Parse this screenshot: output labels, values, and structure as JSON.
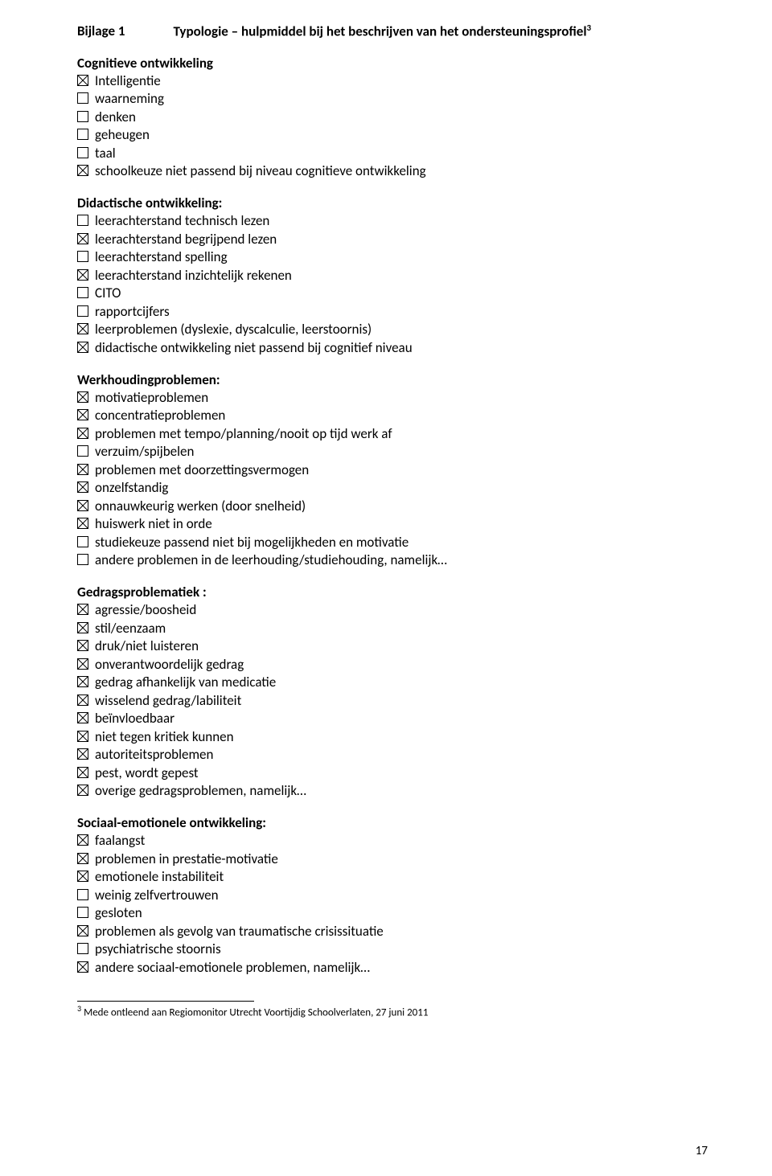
{
  "title": {
    "left": "Bijlage 1",
    "right": "Typologie – hulpmiddel bij het beschrijven van het ondersteuningsprofiel",
    "sup": "3"
  },
  "sections": [
    {
      "heading": "Cognitieve ontwikkeling",
      "items": [
        {
          "checked": true,
          "label": "Intelligentie"
        },
        {
          "checked": false,
          "label": "waarneming"
        },
        {
          "checked": false,
          "label": "denken"
        },
        {
          "checked": false,
          "label": "geheugen"
        },
        {
          "checked": false,
          "label": "taal"
        },
        {
          "checked": true,
          "label": "schoolkeuze niet passend bij niveau cognitieve ontwikkeling"
        }
      ]
    },
    {
      "heading": "Didactische ontwikkeling:",
      "items": [
        {
          "checked": false,
          "label": "leerachterstand technisch lezen"
        },
        {
          "checked": true,
          "label": "leerachterstand begrijpend lezen"
        },
        {
          "checked": false,
          "label": "leerachterstand spelling"
        },
        {
          "checked": true,
          "label": "leerachterstand inzichtelijk rekenen"
        },
        {
          "checked": false,
          "label": "CITO"
        },
        {
          "checked": false,
          "label": "rapportcijfers"
        },
        {
          "checked": true,
          "label": "leerproblemen (dyslexie, dyscalculie, leerstoornis)"
        },
        {
          "checked": true,
          "label": "didactische ontwikkeling niet passend bij cognitief niveau"
        }
      ]
    },
    {
      "heading": "Werkhoudingproblemen:",
      "items": [
        {
          "checked": true,
          "label": "motivatieproblemen"
        },
        {
          "checked": true,
          "label": "concentratieproblemen"
        },
        {
          "checked": true,
          "label": "problemen met tempo/planning/nooit op tijd werk af"
        },
        {
          "checked": false,
          "label": "verzuim/spijbelen"
        },
        {
          "checked": true,
          "label": "problemen met doorzettingsvermogen"
        },
        {
          "checked": true,
          "label": "onzelfstandig"
        },
        {
          "checked": true,
          "label": "onnauwkeurig werken (door snelheid)"
        },
        {
          "checked": true,
          "label": "huiswerk niet in orde"
        },
        {
          "checked": false,
          "label": "studiekeuze passend niet bij mogelijkheden en motivatie"
        },
        {
          "checked": false,
          "label": "andere problemen in de leerhouding/studiehouding, namelijk…"
        }
      ]
    },
    {
      "heading": "Gedragsproblematiek :",
      "items": [
        {
          "checked": true,
          "label": "agressie/boosheid"
        },
        {
          "checked": true,
          "label": "stil/eenzaam"
        },
        {
          "checked": true,
          "label": "druk/niet luisteren"
        },
        {
          "checked": true,
          "label": "onverantwoordelijk gedrag"
        },
        {
          "checked": true,
          "label": "gedrag afhankelijk van medicatie"
        },
        {
          "checked": true,
          "label": "wisselend gedrag/labiliteit"
        },
        {
          "checked": true,
          "label": "beïnvloedbaar"
        },
        {
          "checked": true,
          "label": "niet tegen kritiek kunnen"
        },
        {
          "checked": true,
          "label": "autoriteitsproblemen"
        },
        {
          "checked": true,
          "label": "pest, wordt gepest"
        },
        {
          "checked": true,
          "label": "overige gedragsproblemen, namelijk…"
        }
      ]
    },
    {
      "heading": "Sociaal-emotionele ontwikkeling:",
      "items": [
        {
          "checked": true,
          "label": "faalangst"
        },
        {
          "checked": true,
          "label": "problemen in prestatie-motivatie"
        },
        {
          "checked": true,
          "label": "emotionele instabiliteit"
        },
        {
          "checked": false,
          "label": "weinig zelfvertrouwen"
        },
        {
          "checked": false,
          "label": "gesloten"
        },
        {
          "checked": true,
          "label": "problemen als gevolg van traumatische crisissituatie"
        },
        {
          "checked": false,
          "label": "psychiatrische stoornis"
        },
        {
          "checked": true,
          "label": "andere sociaal-emotionele problemen, namelijk…"
        }
      ]
    }
  ],
  "footnote": {
    "num": "3",
    "text": "Mede ontleend aan Regiomonitor Utrecht Voortijdig Schoolverlaten, 27 juni 2011"
  },
  "page_number": "17"
}
